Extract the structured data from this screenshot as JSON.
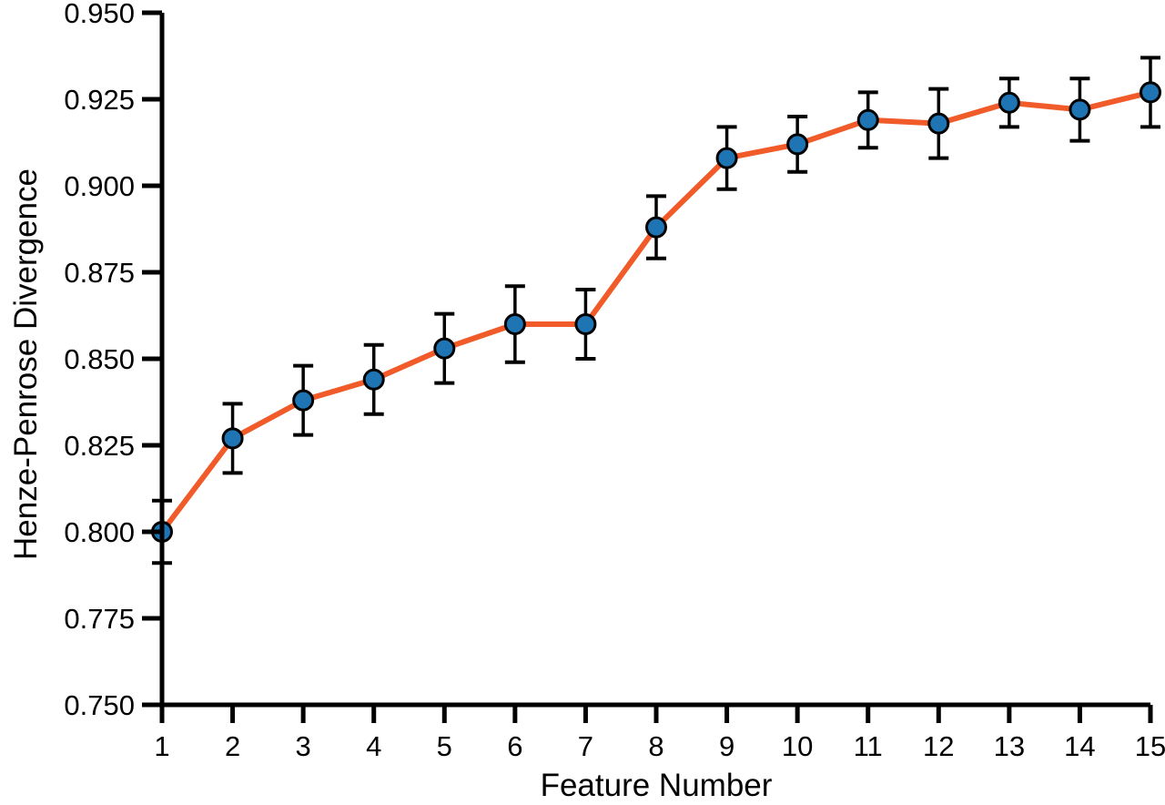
{
  "chart_data": {
    "type": "line",
    "title": "",
    "xlabel": "Feature Number",
    "ylabel": "Henze-Penrose Divergence",
    "x": [
      1,
      2,
      3,
      4,
      5,
      6,
      7,
      8,
      9,
      10,
      11,
      12,
      13,
      14,
      15
    ],
    "xtick_labels": [
      "1",
      "2",
      "3",
      "4",
      "5",
      "6",
      "7",
      "8",
      "9",
      "10",
      "11",
      "12",
      "13",
      "14",
      "15"
    ],
    "series": [
      {
        "name": "Henze-Penrose Divergence",
        "values": [
          0.8,
          0.827,
          0.838,
          0.844,
          0.853,
          0.86,
          0.86,
          0.888,
          0.908,
          0.912,
          0.919,
          0.918,
          0.924,
          0.922,
          0.927
        ],
        "errors": [
          0.009,
          0.01,
          0.01,
          0.01,
          0.01,
          0.011,
          0.01,
          0.009,
          0.009,
          0.008,
          0.008,
          0.01,
          0.007,
          0.009,
          0.01
        ],
        "marker": "circle"
      }
    ],
    "xlim": [
      1,
      15
    ],
    "ylim": [
      0.75,
      0.95
    ],
    "ytick_step": 0.025,
    "ytick_labels": [
      "0.750",
      "0.775",
      "0.800",
      "0.825",
      "0.850",
      "0.875",
      "0.900",
      "0.925",
      "0.950"
    ],
    "grid": false,
    "legend": null,
    "colors": {
      "line": "#F15A29",
      "marker_fill": "#1F74B4",
      "marker_stroke": "#000000",
      "error_bar": "#000000",
      "axis": "#000000",
      "text": "#000000"
    }
  }
}
